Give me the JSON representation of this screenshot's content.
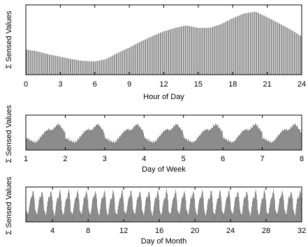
{
  "chart_data": [
    {
      "type": "bar",
      "xlabel": "Hour of Day",
      "ylabel": "Σ Sensed Values",
      "xlim": [
        0,
        24
      ],
      "xticks": [
        "0",
        "3",
        "6",
        "9",
        "12",
        "15",
        "18",
        "21",
        "24"
      ],
      "y_ticks_shown": false,
      "grid": false,
      "legend": "none",
      "color": "#8c8c8c",
      "bar_count": 144,
      "profile_hours": [
        0,
        1,
        2,
        3,
        4,
        5,
        6,
        7,
        8,
        9,
        10,
        11,
        12,
        13,
        14,
        15,
        16,
        17,
        18,
        19,
        20,
        21,
        22,
        23,
        24
      ],
      "profile_values": [
        0.42,
        0.39,
        0.34,
        0.3,
        0.26,
        0.23,
        0.22,
        0.26,
        0.36,
        0.45,
        0.55,
        0.64,
        0.72,
        0.78,
        0.82,
        0.78,
        0.78,
        0.84,
        0.94,
        1.02,
        1.05,
        0.96,
        0.86,
        0.76,
        0.64
      ]
    },
    {
      "type": "area",
      "xlabel": "Day of Week",
      "ylabel": "Σ Sensed Values",
      "xlim": [
        1,
        8
      ],
      "xticks": [
        "1",
        "2",
        "3",
        "4",
        "5",
        "6",
        "7",
        "8"
      ],
      "y_ticks_shown": false,
      "grid": false,
      "legend": "none",
      "color": "#8c8c8c",
      "period": 1,
      "cycles": 7
    },
    {
      "type": "area",
      "xlabel": "Day of Month",
      "ylabel": "Σ Sensed Values",
      "xlim": [
        1,
        32
      ],
      "xticks": [
        "4",
        "8",
        "12",
        "16",
        "20",
        "24",
        "28",
        "32"
      ],
      "y_ticks_shown": false,
      "grid": false,
      "legend": "none",
      "color": "#8c8c8c",
      "period": 1,
      "cycles": 31
    }
  ]
}
